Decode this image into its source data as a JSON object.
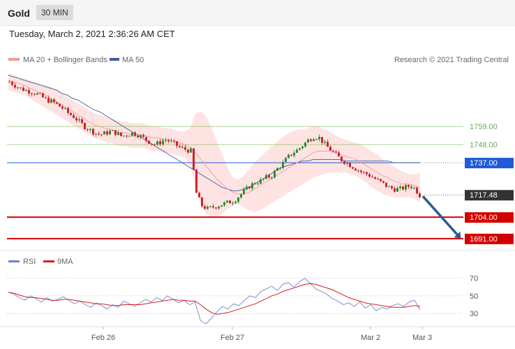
{
  "header": {
    "title": "Gold",
    "timeframe": "30 MIN"
  },
  "timestamp": "Tuesday, March 2, 2021 2:36:26 AM CET",
  "credit": "Research © 2021 Trading Central",
  "colors": {
    "ma20": "#f19a9a",
    "band": "#fdd9d9",
    "ma50": "#3a5f9e",
    "bull": "#2e8b2e",
    "bear": "#c8252a",
    "resistance": "#8fc46a",
    "pivot": "#1f5bd6",
    "support": "#d40000",
    "current": "#333333",
    "rsi": "#6b86c8",
    "rsi_ma": "#d41f1f",
    "arrow": "#2c5a95"
  },
  "chart_data": [
    {
      "type": "candlestick",
      "legend": [
        {
          "name": "MA 20 + Bollinger Bands",
          "color": "#f19a9a"
        },
        {
          "name": "MA 50",
          "color": "#3a5f9e"
        }
      ],
      "x_ticks": [
        "Feb 26",
        "Feb 27",
        "Mar 2",
        "Mar 3"
      ],
      "ylim": [
        1685,
        1795
      ],
      "close_path": [
        1786,
        1784,
        1782,
        1781,
        1780,
        1779,
        1777,
        1775,
        1774,
        1772,
        1770,
        1767,
        1765,
        1762,
        1759,
        1757,
        1755,
        1754,
        1755,
        1756,
        1755,
        1753,
        1754,
        1755,
        1754,
        1752,
        1750,
        1748,
        1749,
        1751,
        1750,
        1748,
        1746,
        1745,
        1744,
        1718,
        1711,
        1709,
        1710,
        1711,
        1712,
        1713,
        1714,
        1717,
        1720,
        1723,
        1725,
        1726,
        1728,
        1729,
        1733,
        1736,
        1740,
        1743,
        1745,
        1748,
        1751,
        1753,
        1752,
        1748,
        1745,
        1742,
        1739,
        1737,
        1735,
        1733,
        1731,
        1730,
        1728,
        1726,
        1724,
        1722,
        1721,
        1721,
        1722,
        1723,
        1721,
        1715
      ],
      "ma20": [
        1787,
        1786,
        1785,
        1784,
        1782,
        1781,
        1779,
        1778,
        1776,
        1774,
        1772,
        1770,
        1768,
        1766,
        1764,
        1762,
        1760,
        1759,
        1758,
        1757,
        1756,
        1755,
        1755,
        1754,
        1754,
        1754,
        1753,
        1752,
        1752,
        1751,
        1751,
        1750,
        1749,
        1748,
        1746,
        1743,
        1739,
        1735,
        1731,
        1727,
        1724,
        1721,
        1719,
        1718,
        1718,
        1719,
        1721,
        1723,
        1725,
        1727,
        1729,
        1731,
        1733,
        1735,
        1737,
        1739,
        1741,
        1743,
        1744,
        1744,
        1744,
        1743,
        1742,
        1741,
        1740,
        1739,
        1737,
        1735,
        1733,
        1731,
        1729,
        1728,
        1726,
        1725,
        1724,
        1724,
        1723,
        1722
      ],
      "ma50": [
        1790,
        1789,
        1788,
        1787,
        1786,
        1785,
        1784,
        1783,
        1782,
        1781,
        1779,
        1778,
        1776,
        1775,
        1773,
        1771,
        1769,
        1768,
        1766,
        1764,
        1762,
        1760,
        1758,
        1756,
        1754,
        1752,
        1750,
        1748,
        1746,
        1744,
        1742,
        1740,
        1738,
        1736,
        1734,
        1732,
        1730,
        1728,
        1726,
        1724,
        1722,
        1721,
        1720,
        1720,
        1721,
        1722,
        1724,
        1726,
        1728,
        1730,
        1732,
        1734,
        1735,
        1736,
        1737,
        1738,
        1738,
        1739,
        1739,
        1739,
        1739,
        1739,
        1739,
        1738,
        1738,
        1738,
        1738,
        1738,
        1738,
        1738,
        1738,
        1738,
        1737,
        1737,
        1737,
        1737,
        1737,
        1737
      ],
      "bb_upper": [
        1791,
        1790,
        1789,
        1788,
        1787,
        1786,
        1785,
        1784,
        1783,
        1781,
        1779,
        1777,
        1775,
        1773,
        1771,
        1769,
        1767,
        1766,
        1765,
        1764,
        1763,
        1762,
        1762,
        1761,
        1761,
        1761,
        1760,
        1759,
        1759,
        1758,
        1758,
        1757,
        1756,
        1756,
        1758,
        1767,
        1768,
        1765,
        1758,
        1750,
        1742,
        1734,
        1728,
        1727,
        1729,
        1733,
        1737,
        1740,
        1743,
        1746,
        1749,
        1752,
        1754,
        1756,
        1757,
        1757,
        1758,
        1759,
        1759,
        1757,
        1756,
        1754,
        1752,
        1751,
        1750,
        1749,
        1748,
        1746,
        1744,
        1742,
        1739,
        1737,
        1735,
        1733,
        1731,
        1730,
        1730,
        1731
      ],
      "bb_lower": [
        1781,
        1780,
        1779,
        1778,
        1776,
        1774,
        1772,
        1770,
        1768,
        1766,
        1764,
        1762,
        1760,
        1758,
        1756,
        1754,
        1752,
        1751,
        1750,
        1749,
        1748,
        1747,
        1747,
        1746,
        1746,
        1746,
        1745,
        1744,
        1744,
        1743,
        1743,
        1742,
        1741,
        1740,
        1735,
        1722,
        1712,
        1706,
        1704,
        1704,
        1706,
        1709,
        1711,
        1712,
        1710,
        1708,
        1707,
        1708,
        1710,
        1712,
        1714,
        1716,
        1718,
        1720,
        1722,
        1724,
        1726,
        1728,
        1729,
        1730,
        1731,
        1731,
        1731,
        1731,
        1730,
        1729,
        1727,
        1725,
        1722,
        1720,
        1718,
        1717,
        1716,
        1716,
        1716,
        1716,
        1715,
        1713
      ],
      "levels": [
        {
          "price": 1759.0,
          "label": "1759.00",
          "kind": "resistance"
        },
        {
          "price": 1748.0,
          "label": "1748.00",
          "kind": "resistance"
        },
        {
          "price": 1737.0,
          "label": "1737.00",
          "kind": "pivot"
        },
        {
          "price": 1717.48,
          "label": "1717.48",
          "kind": "current"
        },
        {
          "price": 1704.0,
          "label": "1704.00",
          "kind": "support"
        },
        {
          "price": 1691.0,
          "label": "1691.00",
          "kind": "support"
        }
      ],
      "forecast_arrow": {
        "from_price": 1717.48,
        "to_price": 1691.0
      }
    },
    {
      "type": "line",
      "legend": [
        {
          "name": "RSI",
          "color": "#6b86c8"
        },
        {
          "name": "9MA",
          "color": "#d41f1f"
        }
      ],
      "y_ticks": [
        70,
        50,
        30
      ],
      "ylim": [
        15,
        80
      ],
      "rsi": [
        54,
        52,
        48,
        45,
        50,
        47,
        43,
        48,
        44,
        46,
        49,
        45,
        41,
        44,
        40,
        37,
        42,
        39,
        35,
        40,
        37,
        44,
        41,
        38,
        42,
        46,
        43,
        48,
        45,
        50,
        46,
        42,
        45,
        40,
        43,
        22,
        18,
        25,
        32,
        38,
        35,
        41,
        39,
        45,
        50,
        48,
        55,
        58,
        61,
        56,
        63,
        65,
        60,
        66,
        70,
        64,
        58,
        55,
        52,
        47,
        44,
        40,
        42,
        38,
        43,
        36,
        40,
        33,
        37,
        35,
        39,
        41,
        38,
        43,
        45,
        34
      ],
      "ma9": [
        54,
        53,
        51,
        49,
        48,
        48,
        47,
        46,
        45,
        45,
        46,
        46,
        45,
        44,
        43,
        42,
        41,
        41,
        40,
        39,
        39,
        40,
        40,
        40,
        40,
        41,
        42,
        43,
        44,
        45,
        46,
        45,
        45,
        44,
        44,
        40,
        35,
        31,
        29,
        30,
        31,
        33,
        35,
        37,
        39,
        41,
        44,
        47,
        50,
        52,
        55,
        57,
        59,
        61,
        63,
        64,
        63,
        61,
        59,
        57,
        54,
        51,
        48,
        46,
        44,
        42,
        41,
        40,
        39,
        38,
        37,
        37,
        37,
        38,
        39,
        38
      ]
    }
  ]
}
